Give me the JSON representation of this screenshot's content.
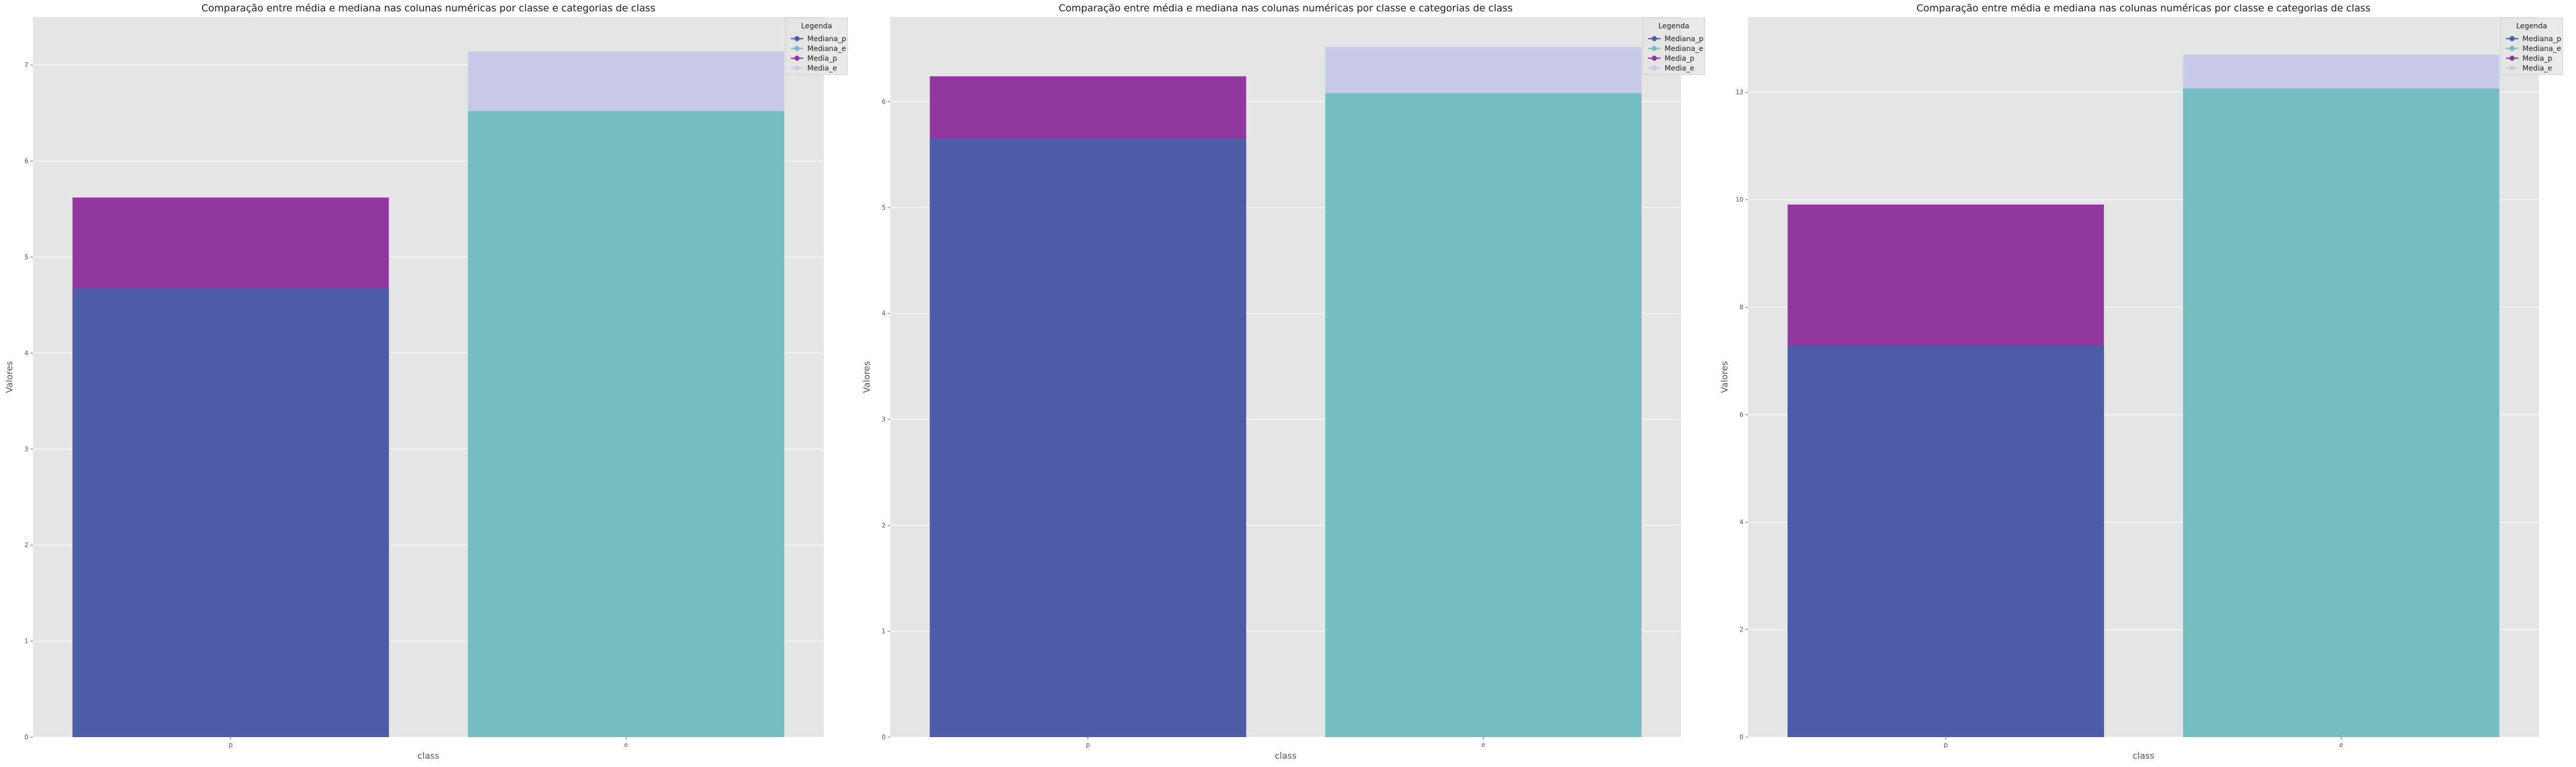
{
  "chart_data": [
    {
      "type": "bar",
      "title": "Comparação entre média e mediana nas colunas numéricas por classe e categorias de class",
      "xlabel": "class",
      "ylabel": "Valores",
      "categories": [
        "p",
        "e"
      ],
      "ylim": [
        0,
        7.5
      ],
      "yticks": [
        0,
        1,
        2,
        3,
        4,
        5,
        6,
        7
      ],
      "series": [
        {
          "name": "Mediana_p",
          "category": "p",
          "value": 4.67,
          "color": "#4c5ca8"
        },
        {
          "name": "Mediana_e",
          "category": "e",
          "value": 6.52,
          "color": "#75bec1"
        },
        {
          "name": "Media_p",
          "category": "p",
          "value": 5.62,
          "color": "#9138a0"
        },
        {
          "name": "Media_e",
          "category": "e",
          "value": 7.14,
          "color": "#c8cbe8"
        }
      ],
      "legend": {
        "title": "Legenda",
        "placement": "top-right"
      },
      "grid": true
    },
    {
      "type": "bar",
      "title": "Comparação entre média e mediana nas colunas numéricas por classe e categorias de class",
      "xlabel": "class",
      "ylabel": "Valores",
      "categories": [
        "p",
        "e"
      ],
      "ylim": [
        0,
        6.8
      ],
      "yticks": [
        0,
        1,
        2,
        3,
        4,
        5,
        6
      ],
      "series": [
        {
          "name": "Mediana_p",
          "category": "p",
          "value": 5.65,
          "color": "#4c5ca8"
        },
        {
          "name": "Mediana_e",
          "category": "e",
          "value": 6.08,
          "color": "#75bec1"
        },
        {
          "name": "Media_p",
          "category": "p",
          "value": 6.24,
          "color": "#9138a0"
        },
        {
          "name": "Media_e",
          "category": "e",
          "value": 6.52,
          "color": "#c8cbe8"
        }
      ],
      "legend": {
        "title": "Legenda",
        "placement": "top-right"
      },
      "grid": true
    },
    {
      "type": "bar",
      "title": "Comparação entre média e mediana nas colunas numéricas por classe e categorias de class",
      "xlabel": "class",
      "ylabel": "Valores",
      "categories": [
        "p",
        "e"
      ],
      "ylim": [
        0,
        13.4
      ],
      "yticks": [
        0,
        2,
        4,
        6,
        8,
        10,
        12
      ],
      "series": [
        {
          "name": "Mediana_p",
          "category": "p",
          "value": 7.28,
          "color": "#4c5ca8"
        },
        {
          "name": "Mediana_e",
          "category": "e",
          "value": 12.07,
          "color": "#75bec1"
        },
        {
          "name": "Media_p",
          "category": "p",
          "value": 9.91,
          "color": "#9138a0"
        },
        {
          "name": "Media_e",
          "category": "e",
          "value": 12.7,
          "color": "#c8cbe8"
        }
      ],
      "legend": {
        "title": "Legenda",
        "placement": "top-right"
      },
      "grid": true
    }
  ]
}
